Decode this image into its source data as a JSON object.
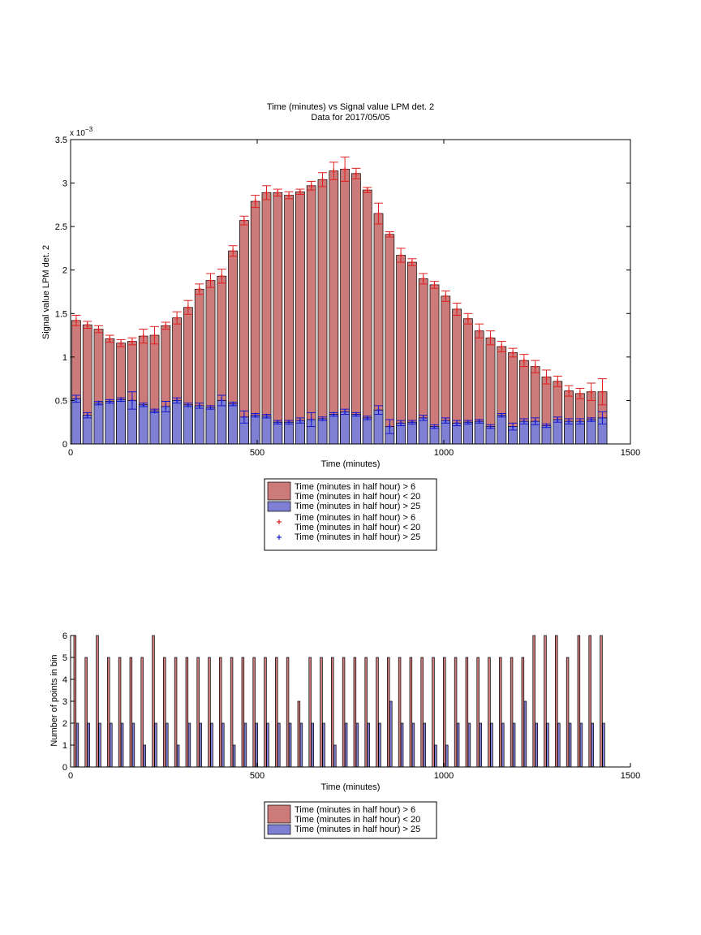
{
  "chart_data": [
    {
      "type": "bar",
      "title": "Time (minutes) vs Signal value LPM det. 2",
      "subtitle": "Data for 2017/05/05",
      "xlabel": "Time (minutes)",
      "ylabel": "Signal value LPM det. 2",
      "y_exponent_label": "x 10",
      "y_exponent_power": "−3",
      "xlim": [
        0,
        1500
      ],
      "ylim": [
        0,
        3.5
      ],
      "x_ticks": [
        "0",
        "500",
        "1000",
        "1500"
      ],
      "y_ticks": [
        "0",
        "0.5",
        "1",
        "1.5",
        "2",
        "2.5",
        "3",
        "3.5"
      ],
      "bar_width": 24,
      "x": [
        15,
        45,
        75,
        105,
        135,
        165,
        195,
        225,
        255,
        285,
        315,
        345,
        375,
        405,
        435,
        465,
        495,
        525,
        555,
        585,
        615,
        645,
        675,
        705,
        735,
        765,
        795,
        825,
        855,
        885,
        915,
        945,
        975,
        1005,
        1035,
        1065,
        1095,
        1125,
        1155,
        1185,
        1215,
        1245,
        1275,
        1305,
        1335,
        1365,
        1395,
        1425
      ],
      "series": [
        {
          "name": "Time (minutes in half hour) > 6\nTime (minutes in half hour) < 20",
          "color": "#cc7a7a",
          "values": [
            1.42,
            1.37,
            1.32,
            1.21,
            1.16,
            1.18,
            1.24,
            1.25,
            1.36,
            1.45,
            1.57,
            1.78,
            1.88,
            1.93,
            2.22,
            2.57,
            2.79,
            2.89,
            2.89,
            2.86,
            2.9,
            2.97,
            3.04,
            3.14,
            3.16,
            3.11,
            2.92,
            2.65,
            2.41,
            2.17,
            2.09,
            1.9,
            1.83,
            1.7,
            1.55,
            1.44,
            1.3,
            1.22,
            1.12,
            1.05,
            0.96,
            0.89,
            0.77,
            0.72,
            0.61,
            0.58,
            0.6,
            0.6
          ]
        },
        {
          "name": "Time (minutes in half hour) > 25",
          "color": "#7f7fd4",
          "values": [
            0.52,
            0.33,
            0.47,
            0.49,
            0.51,
            0.5,
            0.45,
            0.38,
            0.43,
            0.5,
            0.45,
            0.44,
            0.42,
            0.5,
            0.46,
            0.31,
            0.33,
            0.32,
            0.25,
            0.25,
            0.27,
            0.28,
            0.29,
            0.34,
            0.37,
            0.34,
            0.3,
            0.39,
            0.2,
            0.24,
            0.25,
            0.3,
            0.2,
            0.27,
            0.24,
            0.25,
            0.26,
            0.2,
            0.33,
            0.2,
            0.26,
            0.26,
            0.21,
            0.28,
            0.26,
            0.26,
            0.28,
            0.3
          ]
        }
      ],
      "error_series": [
        {
          "name": "Time (minutes in half hour) > 6\nTime (minutes in half hour) < 20",
          "marker": "+",
          "color": "#e02020",
          "upper": [
            1.48,
            1.41,
            1.36,
            1.25,
            1.2,
            1.22,
            1.32,
            1.35,
            1.4,
            1.52,
            1.65,
            1.84,
            1.96,
            2.01,
            2.28,
            2.62,
            2.86,
            2.97,
            2.93,
            2.9,
            2.93,
            3.02,
            3.12,
            3.24,
            3.3,
            3.17,
            2.95,
            2.77,
            2.44,
            2.25,
            2.13,
            1.96,
            1.87,
            1.76,
            1.62,
            1.5,
            1.38,
            1.3,
            1.18,
            1.1,
            1.03,
            0.96,
            0.85,
            0.78,
            0.67,
            0.64,
            0.7,
            0.75
          ],
          "lower": [
            1.36,
            1.33,
            1.28,
            1.17,
            1.12,
            1.14,
            1.16,
            1.15,
            1.32,
            1.38,
            1.49,
            1.72,
            1.8,
            1.85,
            2.16,
            2.52,
            2.72,
            2.81,
            2.85,
            2.82,
            2.87,
            2.92,
            2.96,
            3.04,
            3.02,
            3.05,
            2.89,
            2.53,
            2.38,
            2.09,
            2.05,
            1.84,
            1.79,
            1.64,
            1.48,
            1.38,
            1.22,
            1.14,
            1.06,
            1.0,
            0.89,
            0.82,
            0.69,
            0.66,
            0.55,
            0.52,
            0.5,
            0.45
          ]
        },
        {
          "name": "Time (minutes in half hour) > 25",
          "marker": "+",
          "color": "#1a1acc",
          "upper": [
            0.56,
            0.36,
            0.49,
            0.51,
            0.53,
            0.6,
            0.47,
            0.4,
            0.49,
            0.53,
            0.47,
            0.47,
            0.44,
            0.56,
            0.48,
            0.38,
            0.35,
            0.34,
            0.27,
            0.27,
            0.3,
            0.36,
            0.31,
            0.36,
            0.4,
            0.36,
            0.32,
            0.44,
            0.28,
            0.27,
            0.27,
            0.33,
            0.22,
            0.3,
            0.27,
            0.27,
            0.28,
            0.22,
            0.35,
            0.24,
            0.29,
            0.3,
            0.23,
            0.31,
            0.29,
            0.29,
            0.3,
            0.37
          ],
          "lower": [
            0.48,
            0.3,
            0.45,
            0.47,
            0.49,
            0.4,
            0.43,
            0.36,
            0.37,
            0.47,
            0.43,
            0.41,
            0.4,
            0.44,
            0.44,
            0.24,
            0.31,
            0.3,
            0.23,
            0.23,
            0.24,
            0.2,
            0.27,
            0.32,
            0.34,
            0.32,
            0.28,
            0.34,
            0.12,
            0.21,
            0.23,
            0.27,
            0.18,
            0.24,
            0.21,
            0.23,
            0.24,
            0.18,
            0.31,
            0.16,
            0.23,
            0.22,
            0.19,
            0.25,
            0.23,
            0.23,
            0.26,
            0.23
          ]
        }
      ],
      "legend": {
        "placement": "below",
        "entries": [
          {
            "kind": "bar",
            "color": "#cc7a7a",
            "lines": [
              "Time (minutes in half hour) > 6",
              "Time (minutes in half hour) < 20"
            ]
          },
          {
            "kind": "bar",
            "color": "#7f7fd4",
            "lines": [
              "Time (minutes in half hour) > 25"
            ]
          },
          {
            "kind": "marker",
            "color": "#e02020",
            "lines": [
              "Time (minutes in half hour) > 6",
              "Time (minutes in half hour) < 20"
            ]
          },
          {
            "kind": "marker",
            "color": "#1a1acc",
            "lines": [
              "Time (minutes in half hour) > 25"
            ]
          }
        ]
      },
      "grid": false
    },
    {
      "type": "bar",
      "title": "",
      "xlabel": "Time (minutes)",
      "ylabel": "Number of points in bin",
      "xlim": [
        0,
        1500
      ],
      "ylim": [
        0,
        6
      ],
      "x_ticks": [
        "0",
        "500",
        "1000",
        "1500"
      ],
      "y_ticks": [
        "0",
        "1",
        "2",
        "3",
        "4",
        "5",
        "6"
      ],
      "bar_width": 6,
      "x": [
        15,
        45,
        75,
        105,
        135,
        165,
        195,
        225,
        255,
        285,
        315,
        345,
        375,
        405,
        435,
        465,
        495,
        525,
        555,
        585,
        615,
        645,
        675,
        705,
        735,
        765,
        795,
        825,
        855,
        885,
        915,
        945,
        975,
        1005,
        1035,
        1065,
        1095,
        1125,
        1155,
        1185,
        1215,
        1245,
        1275,
        1305,
        1335,
        1365,
        1395,
        1425
      ],
      "series": [
        {
          "name": "Time (minutes in half hour) > 6\nTime (minutes in half hour) < 20",
          "color": "#cc7a7a",
          "values": [
            6,
            5,
            6,
            5,
            5,
            5,
            5,
            6,
            5,
            5,
            5,
            5,
            5,
            5,
            5,
            5,
            5,
            5,
            5,
            5,
            3,
            5,
            5,
            5,
            5,
            5,
            5,
            5,
            5,
            5,
            5,
            5,
            5,
            5,
            5,
            5,
            5,
            5,
            5,
            5,
            5,
            6,
            6,
            6,
            5,
            6,
            6,
            6
          ]
        },
        {
          "name": "Time (minutes in half hour) > 25",
          "color": "#7f7fd4",
          "values": [
            2,
            2,
            2,
            2,
            2,
            2,
            1,
            2,
            2,
            1,
            2,
            2,
            2,
            2,
            1,
            2,
            2,
            2,
            2,
            2,
            2,
            2,
            2,
            1,
            2,
            2,
            2,
            2,
            3,
            2,
            2,
            2,
            1,
            1,
            2,
            2,
            2,
            2,
            2,
            2,
            3,
            2,
            2,
            2,
            2,
            2,
            2,
            2
          ]
        }
      ],
      "legend": {
        "placement": "below",
        "entries": [
          {
            "kind": "bar",
            "color": "#cc7a7a",
            "lines": [
              "Time (minutes in half hour) > 6",
              "Time (minutes in half hour) < 20"
            ]
          },
          {
            "kind": "bar",
            "color": "#7f7fd4",
            "lines": [
              "Time (minutes in half hour) > 25"
            ]
          }
        ]
      },
      "grid": false
    }
  ]
}
